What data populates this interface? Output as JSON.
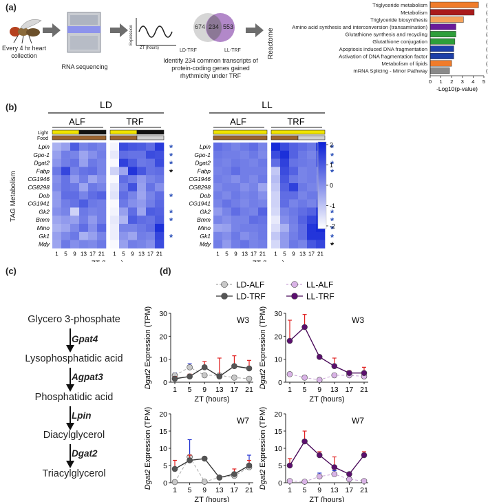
{
  "panel_labels": {
    "a": "(a)",
    "b": "(b)",
    "c": "(c)",
    "d": "(d)"
  },
  "panel_a": {
    "workflow": {
      "step1": "Every 4 hr heart collection",
      "step2": "RNA sequencing",
      "wave_y": "Expression",
      "wave_x": "ZT (hours)",
      "venn_left_count": "674",
      "venn_overlap_count": "234",
      "venn_right_count": "553",
      "venn_left_label": "LD-TRF",
      "venn_right_label": "LL-TRF",
      "identify_text": "Identify 234 common transcripts of protein-coding genes gained rhythmicity under TRF"
    },
    "reactome_label": "Reactome",
    "xlabel": "-Log10(p-value)",
    "xticks": [
      "0",
      "1",
      "2",
      "3",
      "4",
      "5"
    ]
  },
  "panel_b": {
    "header_ld": "LD",
    "header_ll": "LL",
    "alf": "ALF",
    "trf": "TRF",
    "row_light": "Light",
    "row_food": "Food",
    "ylabel": "TAG Metabolism",
    "xlabel": "ZT (hours)",
    "zt_ticks": [
      "1",
      "5",
      "9",
      "13",
      "17",
      "21"
    ],
    "colorbar_ticks": [
      "2",
      "1",
      "0",
      "-1",
      "-2"
    ],
    "star": "*"
  },
  "panel_c": {
    "metabolites": [
      "Glycero 3-phosphate",
      "Lysophosphatidic acid",
      "Phosphatidic acid",
      "Diacylglycerol",
      "Triacylglycerol"
    ],
    "enzymes": [
      "Gpat4",
      "Agpat3",
      "Lpin",
      "Dgat2"
    ]
  },
  "panel_d": {
    "legend": {
      "ld_alf": "LD-ALF",
      "ll_alf": "LL-ALF",
      "ld_trf": "LD-TRF",
      "ll_trf": "LL-TRF"
    },
    "ylabel_gene": "Dgat2",
    "ylabel_rest": " Expression (TPM)",
    "xlabel": "ZT (hours)"
  },
  "colors": {
    "reactome_orange": "#f07c2b",
    "reactome_red": "#a91b1b",
    "reactome_light_orange": "#f5a35c",
    "reactome_purple": "#6a1b9a",
    "reactome_green": "#2e9e3a",
    "reactome_blue": "#1d3fa8",
    "reactome_gray": "#8a8a8a",
    "heat_max": "#0a1fd6",
    "heat_min": "#ffffff",
    "star_blue": "#2a4fb8",
    "star_black": "#111111",
    "ld_trf": "#555555",
    "ll_trf": "#5b0f6e",
    "ld_alf": "#c8c8c8",
    "ll_alf": "#d9b3e6",
    "err_red": "#e02020",
    "err_blue": "#2030d0"
  },
  "chart_data": [
    {
      "type": "bar",
      "title": "Reactome enrichment",
      "xlabel": "-Log10(p-value)",
      "xlim": [
        0,
        5
      ],
      "orientation": "horizontal",
      "categories": [
        "Triglyceride metabolism",
        "Metabolism",
        "Triglyceride biosynthesis",
        "Amino acid synthesis and interconversion (transamination)",
        "Glutathione synthesis and recycling",
        "Glutathione conjugation",
        "Apoptosis induced DNA fragmentation",
        "Activation of DNA fragmentation factor",
        "Metabolism of lipids",
        "mRNA Splicing - Minor Pathway"
      ],
      "values": [
        4.5,
        4.1,
        3.1,
        2.4,
        2.4,
        2.3,
        2.2,
        2.2,
        2.0,
        1.8
      ],
      "counts": [
        "(6)",
        "(84)",
        "(4)",
        "(5)",
        "(4)",
        "(6)",
        "(3)",
        "(3)",
        "(33)",
        "(7)"
      ],
      "bar_colors": [
        "#f07c2b",
        "#a91b1b",
        "#f5a35c",
        "#6a1b9a",
        "#2e9e3a",
        "#2e9e3a",
        "#1d3fa8",
        "#1d3fa8",
        "#f07c2b",
        "#8a8a8a"
      ]
    },
    {
      "type": "heatmap",
      "title": "LD TAG Metabolism",
      "genes": [
        "Lpin",
        "Gpo-1",
        "Dgat2",
        "Fabp",
        "CG1946",
        "CG8298",
        "Dob",
        "CG1941",
        "Gk2",
        "Bmm",
        "Mino",
        "Gk1",
        "Mdy"
      ],
      "columns": [
        "ALF 1",
        "ALF 5",
        "ALF 9",
        "ALF 13",
        "ALF 17",
        "ALF 21",
        "TRF 1",
        "TRF 5",
        "TRF 9",
        "TRF 13",
        "TRF 17",
        "TRF 21"
      ],
      "zlim": [
        -2,
        2
      ],
      "values": [
        [
          -0.6,
          -0.3,
          0.9,
          0.2,
          0.4,
          0.2,
          -1.8,
          1.2,
          1.0,
          0.9,
          0.6,
          1.5
        ],
        [
          -0.3,
          0.3,
          0.2,
          -0.4,
          0.0,
          0.3,
          -1.6,
          0.6,
          0.5,
          0.5,
          1.2,
          1.1
        ],
        [
          -0.1,
          0.3,
          0.5,
          -0.3,
          0.4,
          0.2,
          -1.9,
          1.4,
          0.9,
          0.4,
          0.5,
          1.2
        ],
        [
          0.4,
          1.3,
          0.2,
          0.5,
          0.6,
          0.2,
          -1.2,
          -0.4,
          1.6,
          1.0,
          0.5,
          0.6
        ],
        [
          0.0,
          0.5,
          -0.2,
          0.3,
          -0.4,
          0.0,
          -1.9,
          0.6,
          0.3,
          -0.2,
          0.2,
          0.4
        ],
        [
          0.1,
          0.5,
          0.4,
          -0.4,
          0.4,
          0.2,
          -1.6,
          0.3,
          1.1,
          -0.3,
          0.5,
          0.0
        ],
        [
          -0.2,
          0.6,
          0.6,
          0.2,
          0.6,
          0.8,
          -1.5,
          0.6,
          0.2,
          -0.4,
          0.2,
          0.6
        ],
        [
          -0.2,
          0.3,
          0.5,
          0.9,
          0.4,
          0.3,
          -1.9,
          0.4,
          0.0,
          -0.2,
          0.3,
          0.7
        ],
        [
          0.0,
          0.2,
          -1.2,
          0.4,
          0.2,
          0.3,
          -1.8,
          -0.3,
          0.6,
          -0.4,
          0.9,
          0.8
        ],
        [
          -0.4,
          -0.2,
          -0.3,
          0.3,
          -0.2,
          0.3,
          -1.6,
          -0.7,
          0.9,
          0.6,
          0.5,
          0.9
        ],
        [
          -0.6,
          -0.4,
          0.1,
          0.6,
          0.0,
          0.7,
          -1.7,
          0.2,
          0.2,
          0.4,
          0.6,
          1.7
        ],
        [
          -0.3,
          0.1,
          0.4,
          -0.6,
          -0.3,
          0.2,
          -1.7,
          -0.1,
          -0.4,
          0.3,
          0.2,
          1.3
        ],
        [
          -0.4,
          0.4,
          0.0,
          0.2,
          0.1,
          0.4,
          -1.9,
          -0.3,
          0.3,
          0.2,
          0.0,
          1.2
        ]
      ],
      "stars": [
        "blue",
        "blue",
        "blue",
        "black",
        "",
        "",
        "blue",
        "",
        "blue",
        "blue",
        "",
        "blue",
        ""
      ]
    },
    {
      "type": "heatmap",
      "title": "LL TAG Metabolism",
      "genes": [
        "Lpin",
        "Gpo-1",
        "Dgat2",
        "Fabp",
        "CG1946",
        "CG8298",
        "Dob",
        "CG1941",
        "Gk2",
        "Bmm",
        "Mino",
        "Gk1",
        "Mdy"
      ],
      "columns": [
        "ALF 1",
        "ALF 5",
        "ALF 9",
        "ALF 13",
        "ALF 17",
        "ALF 21",
        "TRF 1",
        "TRF 5",
        "TRF 9",
        "TRF 13",
        "TRF 17",
        "TRF 21"
      ],
      "zlim": [
        -2,
        2
      ],
      "values": [
        [
          0.6,
          0.4,
          0.2,
          0.4,
          0.6,
          0.2,
          1.8,
          1.2,
          0.8,
          0.6,
          0.4,
          1.4
        ],
        [
          0.4,
          0.3,
          0.3,
          0.2,
          0.4,
          0.1,
          1.2,
          1.7,
          0.8,
          0.4,
          0.2,
          0.8
        ],
        [
          0.3,
          0.2,
          0.4,
          0.3,
          0.2,
          0.4,
          0.6,
          1.4,
          0.5,
          0.4,
          0.3,
          0.8
        ],
        [
          0.2,
          0.3,
          0.6,
          0.3,
          0.3,
          0.3,
          -1.0,
          1.2,
          0.8,
          0.2,
          0.3,
          0.2
        ],
        [
          0.3,
          0.2,
          0.0,
          0.3,
          0.1,
          0.4,
          -0.8,
          1.0,
          0.4,
          0.2,
          0.3,
          0.1
        ],
        [
          0.1,
          0.3,
          0.3,
          0.0,
          0.2,
          -0.4,
          -1.0,
          0.8,
          1.4,
          0.4,
          0.2,
          0.1
        ],
        [
          0.3,
          0.1,
          0.4,
          0.2,
          0.3,
          0.0,
          -1.2,
          0.6,
          0.6,
          0.2,
          0.4,
          0.4
        ],
        [
          0.2,
          0.5,
          0.3,
          0.1,
          0.3,
          0.2,
          -1.2,
          0.6,
          0.2,
          0.4,
          0.2,
          0.5
        ],
        [
          -0.2,
          0.2,
          0.6,
          0.3,
          0.2,
          0.8,
          -1.3,
          0.2,
          0.4,
          0.6,
          0.8,
          1.4
        ],
        [
          0.2,
          0.0,
          0.2,
          0.2,
          0.6,
          0.5,
          -1.6,
          0.0,
          0.3,
          0.8,
          1.3,
          1.6
        ],
        [
          -0.4,
          -0.3,
          0.2,
          0.3,
          0.3,
          0.4,
          -1.4,
          -0.6,
          0.2,
          0.6,
          1.6,
          1.8
        ],
        [
          0.2,
          0.0,
          0.4,
          0.0,
          0.2,
          0.4,
          -1.0,
          -0.2,
          0.3,
          0.6,
          1.6,
          1.6
        ],
        [
          0.3,
          -0.2,
          0.3,
          0.5,
          0.2,
          0.3,
          -1.3,
          -0.2,
          0.4,
          0.2,
          1.0,
          1.3
        ]
      ],
      "stars": [
        "blue",
        "blue",
        "blue",
        "blue",
        "",
        "",
        "",
        "",
        "blue",
        "blue",
        "blue",
        "blue",
        "black"
      ]
    },
    {
      "type": "line",
      "title": "W3",
      "condition": "LD",
      "x": [
        1,
        5,
        9,
        13,
        17,
        21
      ],
      "ylim": [
        0,
        30
      ],
      "yticks": [
        0,
        10,
        20,
        30
      ],
      "xlabel": "ZT (hours)",
      "series": [
        {
          "name": "LD-ALF",
          "values": [
            3,
            6.5,
            3,
            3,
            2,
            1.5
          ],
          "err": [
            1,
            1.5,
            0.5,
            0.5,
            0.5,
            0.3
          ],
          "err_color": "blue"
        },
        {
          "name": "LD-TRF",
          "values": [
            1.5,
            2.5,
            6.5,
            2.5,
            7,
            6
          ],
          "err": [
            1,
            1,
            2.5,
            8,
            4.5,
            3.5
          ],
          "err_color": "red"
        }
      ]
    },
    {
      "type": "line",
      "title": "W3",
      "condition": "LL",
      "x": [
        1,
        5,
        9,
        13,
        17,
        21
      ],
      "ylim": [
        0,
        30
      ],
      "yticks": [
        0,
        10,
        20,
        30
      ],
      "xlabel": "ZT (hours)",
      "series": [
        {
          "name": "LL-ALF",
          "values": [
            3.5,
            2,
            1,
            3,
            3,
            2.5
          ],
          "err": [
            0.5,
            0.3,
            0.3,
            0.3,
            0.3,
            0.3
          ],
          "err_color": "blue"
        },
        {
          "name": "LL-TRF",
          "values": [
            18,
            24,
            11,
            7,
            4,
            4
          ],
          "err": [
            9,
            5.5,
            0,
            3.5,
            1,
            2.5
          ],
          "err_color": "red"
        }
      ]
    },
    {
      "type": "line",
      "title": "W7",
      "condition": "LD",
      "x": [
        1,
        5,
        9,
        13,
        17,
        21
      ],
      "ylim": [
        0,
        20
      ],
      "yticks": [
        0,
        5,
        10,
        15,
        20
      ],
      "xlabel": "ZT (hours)",
      "series": [
        {
          "name": "LD-ALF",
          "values": [
            0.2,
            7.5,
            0.3,
            1.5,
            2,
            4.5
          ],
          "err": [
            0.2,
            5,
            0.3,
            0.5,
            0.5,
            3.5
          ],
          "err_color": "blue"
        },
        {
          "name": "LD-TRF",
          "values": [
            4,
            6.5,
            7,
            1.5,
            2.5,
            5
          ],
          "err": [
            2.5,
            1.5,
            0.5,
            0.5,
            1.5,
            1.5
          ],
          "err_color": "red"
        }
      ]
    },
    {
      "type": "line",
      "title": "W7",
      "condition": "LL",
      "x": [
        1,
        5,
        9,
        13,
        17,
        21
      ],
      "ylim": [
        0,
        20
      ],
      "yticks": [
        0,
        5,
        10,
        15,
        20
      ],
      "xlabel": "ZT (hours)",
      "series": [
        {
          "name": "LL-ALF",
          "values": [
            0.5,
            0.3,
            1.8,
            2.5,
            1,
            0.5
          ],
          "err": [
            0.3,
            0.3,
            1,
            1,
            0.5,
            0.3
          ],
          "err_color": "blue"
        },
        {
          "name": "LL-TRF",
          "values": [
            5,
            12,
            8,
            4.5,
            2.5,
            8
          ],
          "err": [
            2,
            3,
            1,
            3,
            0.5,
            1
          ],
          "err_color": "red"
        }
      ]
    }
  ]
}
